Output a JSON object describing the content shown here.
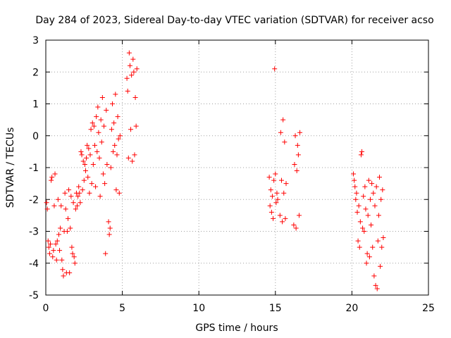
{
  "chart_data": {
    "type": "scatter",
    "title": "Day 284 of 2023, Sidereal Day-to-day VTEC variation (SDTVAR) for receiver acso",
    "xlabel": "GPS time / hours",
    "ylabel": "SDTVAR / TECUs",
    "xlim": [
      0,
      25
    ],
    "ylim": [
      -5,
      3
    ],
    "xticks": [
      "0",
      "5",
      "10",
      "15",
      "20",
      "25"
    ],
    "yticks": [
      "-5",
      "-4",
      "-3",
      "-2",
      "-1",
      "0",
      "1",
      "2",
      "3"
    ],
    "grid": true,
    "marker": "+",
    "color": "#ff0000",
    "series": [
      {
        "name": "SDTVAR",
        "points": [
          [
            0.05,
            -2.1
          ],
          [
            0.1,
            -2.3
          ],
          [
            0.15,
            -3.3
          ],
          [
            0.2,
            -3.5
          ],
          [
            0.25,
            -3.7
          ],
          [
            0.3,
            -3.4
          ],
          [
            0.35,
            -1.4
          ],
          [
            0.4,
            -1.3
          ],
          [
            0.45,
            -3.8
          ],
          [
            0.5,
            -3.6
          ],
          [
            0.55,
            -2.2
          ],
          [
            0.6,
            -1.2
          ],
          [
            0.65,
            -3.4
          ],
          [
            0.7,
            -3.9
          ],
          [
            0.75,
            -3.3
          ],
          [
            0.8,
            -2.0
          ],
          [
            0.85,
            -3.1
          ],
          [
            0.9,
            -3.6
          ],
          [
            0.95,
            -2.9
          ],
          [
            1.0,
            -2.2
          ],
          [
            1.05,
            -3.9
          ],
          [
            1.1,
            -4.2
          ],
          [
            1.15,
            -4.4
          ],
          [
            1.2,
            -3.0
          ],
          [
            1.25,
            -1.8
          ],
          [
            1.3,
            -2.3
          ],
          [
            1.35,
            -4.3
          ],
          [
            1.4,
            -3.0
          ],
          [
            1.45,
            -2.6
          ],
          [
            1.5,
            -1.7
          ],
          [
            1.55,
            -4.3
          ],
          [
            1.6,
            -2.9
          ],
          [
            1.65,
            -1.9
          ],
          [
            1.7,
            -3.5
          ],
          [
            1.75,
            -3.7
          ],
          [
            1.8,
            -2.1
          ],
          [
            1.85,
            -3.8
          ],
          [
            1.9,
            -4.0
          ],
          [
            1.95,
            -2.3
          ],
          [
            2.0,
            -1.8
          ],
          [
            2.05,
            -2.2
          ],
          [
            2.1,
            -1.9
          ],
          [
            2.15,
            -1.6
          ],
          [
            2.2,
            -1.8
          ],
          [
            2.25,
            -2.1
          ],
          [
            2.3,
            -0.5
          ],
          [
            2.35,
            -0.6
          ],
          [
            2.4,
            -1.7
          ],
          [
            2.45,
            -0.8
          ],
          [
            2.5,
            -1.4
          ],
          [
            2.55,
            -0.9
          ],
          [
            2.6,
            -1.1
          ],
          [
            2.65,
            -0.7
          ],
          [
            2.7,
            -0.3
          ],
          [
            2.75,
            -1.3
          ],
          [
            2.8,
            -0.4
          ],
          [
            2.85,
            -1.8
          ],
          [
            2.9,
            -0.6
          ],
          [
            2.95,
            0.2
          ],
          [
            3.0,
            -1.5
          ],
          [
            3.05,
            0.4
          ],
          [
            3.1,
            -0.9
          ],
          [
            3.15,
            0.3
          ],
          [
            3.2,
            -0.3
          ],
          [
            3.25,
            -1.6
          ],
          [
            3.3,
            0.6
          ],
          [
            3.35,
            -0.5
          ],
          [
            3.4,
            0.9
          ],
          [
            3.45,
            0.1
          ],
          [
            3.5,
            -0.7
          ],
          [
            3.55,
            -1.9
          ],
          [
            3.6,
            0.5
          ],
          [
            3.65,
            -0.2
          ],
          [
            3.7,
            1.2
          ],
          [
            3.75,
            -1.2
          ],
          [
            3.8,
            0.3
          ],
          [
            3.85,
            -1.5
          ],
          [
            3.9,
            -3.7
          ],
          [
            3.95,
            0.8
          ],
          [
            4.0,
            -0.9
          ],
          [
            4.1,
            -2.7
          ],
          [
            4.15,
            -3.1
          ],
          [
            4.2,
            -2.9
          ],
          [
            4.25,
            -1.0
          ],
          [
            4.3,
            0.2
          ],
          [
            4.35,
            1.0
          ],
          [
            4.4,
            -0.5
          ],
          [
            4.45,
            0.4
          ],
          [
            4.5,
            -0.3
          ],
          [
            4.55,
            1.3
          ],
          [
            4.6,
            -1.7
          ],
          [
            4.65,
            -0.6
          ],
          [
            4.7,
            0.6
          ],
          [
            4.75,
            -0.1
          ],
          [
            4.8,
            -1.8
          ],
          [
            4.85,
            0.0
          ],
          [
            5.3,
            1.8
          ],
          [
            5.35,
            1.4
          ],
          [
            5.4,
            -0.7
          ],
          [
            5.45,
            2.6
          ],
          [
            5.5,
            2.2
          ],
          [
            5.55,
            0.2
          ],
          [
            5.6,
            1.9
          ],
          [
            5.65,
            -0.8
          ],
          [
            5.7,
            2.4
          ],
          [
            5.75,
            2.0
          ],
          [
            5.8,
            -0.6
          ],
          [
            5.85,
            1.2
          ],
          [
            5.9,
            0.3
          ],
          [
            5.95,
            2.1
          ],
          [
            14.6,
            -1.3
          ],
          [
            14.65,
            -2.2
          ],
          [
            14.7,
            -1.7
          ],
          [
            14.75,
            -2.4
          ],
          [
            14.8,
            -1.9
          ],
          [
            14.85,
            -2.6
          ],
          [
            14.9,
            -1.4
          ],
          [
            14.95,
            2.1
          ],
          [
            15.0,
            -1.2
          ],
          [
            15.05,
            -2.1
          ],
          [
            15.1,
            -1.8
          ],
          [
            15.15,
            -2.0
          ],
          [
            15.3,
            -2.5
          ],
          [
            15.35,
            0.1
          ],
          [
            15.4,
            -1.4
          ],
          [
            15.45,
            -2.7
          ],
          [
            15.5,
            0.5
          ],
          [
            15.55,
            -1.8
          ],
          [
            15.6,
            -0.2
          ],
          [
            15.65,
            -2.6
          ],
          [
            15.7,
            -1.5
          ],
          [
            16.2,
            -2.8
          ],
          [
            16.25,
            -0.9
          ],
          [
            16.3,
            0.0
          ],
          [
            16.35,
            -2.9
          ],
          [
            16.4,
            -1.1
          ],
          [
            16.45,
            -0.3
          ],
          [
            16.5,
            -0.6
          ],
          [
            16.55,
            -2.5
          ],
          [
            16.6,
            0.1
          ],
          [
            20.1,
            -1.2
          ],
          [
            20.15,
            -1.4
          ],
          [
            20.2,
            -1.6
          ],
          [
            20.25,
            -2.0
          ],
          [
            20.3,
            -1.8
          ],
          [
            20.35,
            -2.4
          ],
          [
            20.4,
            -3.3
          ],
          [
            20.45,
            -2.2
          ],
          [
            20.5,
            -3.5
          ],
          [
            20.55,
            -2.7
          ],
          [
            20.6,
            -0.6
          ],
          [
            20.65,
            -0.5
          ],
          [
            20.7,
            -2.9
          ],
          [
            20.75,
            -1.9
          ],
          [
            20.8,
            -3.0
          ],
          [
            20.85,
            -1.6
          ],
          [
            20.9,
            -2.3
          ],
          [
            20.95,
            -4.0
          ],
          [
            21.0,
            -3.7
          ],
          [
            21.05,
            -2.5
          ],
          [
            21.1,
            -1.4
          ],
          [
            21.15,
            -3.8
          ],
          [
            21.2,
            -2.0
          ],
          [
            21.25,
            -2.8
          ],
          [
            21.3,
            -1.5
          ],
          [
            21.35,
            -3.5
          ],
          [
            21.4,
            -1.8
          ],
          [
            21.45,
            -4.4
          ],
          [
            21.5,
            -2.2
          ],
          [
            21.55,
            -4.7
          ],
          [
            21.6,
            -1.6
          ],
          [
            21.65,
            -4.8
          ],
          [
            21.7,
            -3.3
          ],
          [
            21.75,
            -2.5
          ],
          [
            21.8,
            -1.3
          ],
          [
            21.85,
            -4.1
          ],
          [
            21.9,
            -2.0
          ],
          [
            21.95,
            -3.5
          ],
          [
            22.0,
            -1.7
          ],
          [
            22.05,
            -3.2
          ]
        ]
      }
    ]
  }
}
